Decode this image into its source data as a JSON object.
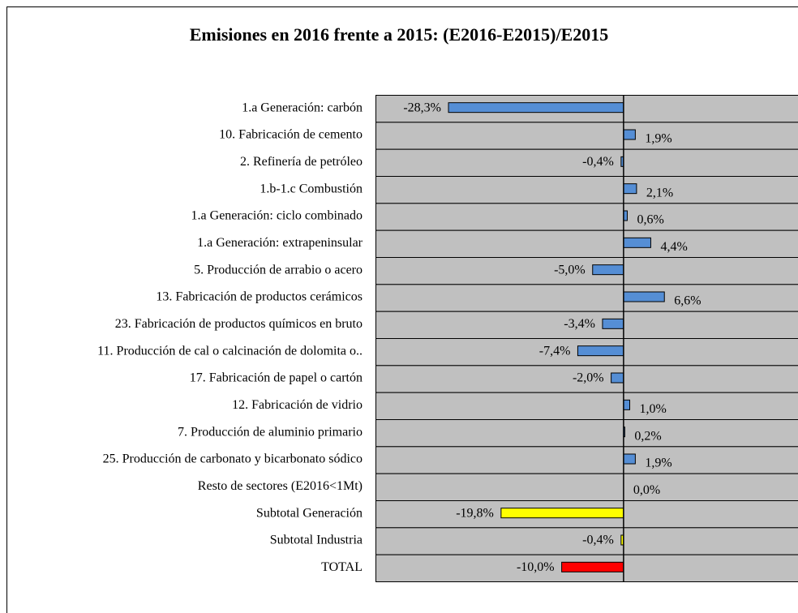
{
  "chart_data": {
    "type": "barh",
    "title": "Emisiones en 2016 frente a 2015: (E2016-E2015)/E2015",
    "categories": [
      "1.a Generación: carbón",
      "10. Fabricación de cemento",
      "2. Refinería de petróleo",
      "1.b-1.c Combustión",
      "1.a Generación: ciclo combinado",
      "1.a Generación: extrapeninsular",
      "5. Producción de arrabio o acero",
      "13. Fabricación de productos cerámicos",
      "23. Fabricación de productos químicos en bruto",
      "11. Producción de cal o calcinación de dolomita o..",
      "17. Fabricación de papel o cartón",
      "12. Fabricación de vidrio",
      "7. Producción de aluminio primario",
      "25. Producción de carbonato y bicarbonato sódico",
      "Resto de sectores (E2016<1Mt)",
      "Subtotal Generación",
      "Subtotal Industria",
      "TOTAL"
    ],
    "values": [
      -28.3,
      1.9,
      -0.4,
      2.1,
      0.6,
      4.4,
      -5.0,
      6.6,
      -3.4,
      -7.4,
      -2.0,
      1.0,
      0.2,
      1.9,
      0.0,
      -19.8,
      -0.4,
      -10.0
    ],
    "value_labels": [
      "-28,3%",
      "1,9%",
      "-0,4%",
      "2,1%",
      "0,6%",
      "4,4%",
      "-5,0%",
      "6,6%",
      "-3,4%",
      "-7,4%",
      "-2,0%",
      "1,0%",
      "0,2%",
      "1,9%",
      "0,0%",
      "-19,8%",
      "-0,4%",
      "-10,0%"
    ],
    "colors": [
      "#558ed5",
      "#558ed5",
      "#558ed5",
      "#558ed5",
      "#558ed5",
      "#558ed5",
      "#558ed5",
      "#558ed5",
      "#558ed5",
      "#558ed5",
      "#558ed5",
      "#558ed5",
      "#558ed5",
      "#558ed5",
      "#558ed5",
      "#ffff00",
      "#ffff00",
      "#ff0000"
    ],
    "xlim": [
      -40.1,
      28.2
    ]
  }
}
